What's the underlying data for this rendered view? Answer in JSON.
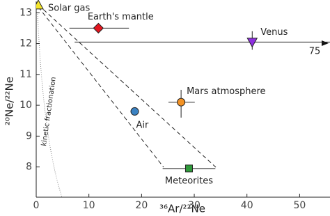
{
  "chart_data": {
    "type": "scatter",
    "x_label": "³⁶Ar/²²Ne",
    "y_label": "²⁰Ne/²²Ne",
    "xlim": [
      0,
      55.5
    ],
    "ylim": [
      7.02,
      13.3
    ],
    "xticks": [
      0,
      10,
      20,
      30,
      40,
      50
    ],
    "yticks": [
      8,
      9,
      10,
      11,
      12,
      13
    ],
    "annotations": [
      "kinetic fractionation",
      "75"
    ],
    "series": [
      {
        "name": "Solar gas",
        "color": "#f4e52c",
        "marker": "triangle",
        "x": [
          0.4
        ],
        "values": [
          13.25
        ]
      },
      {
        "name": "Earth's mantle",
        "color": "#e3161f",
        "marker": "diamond",
        "x": [
          11.8
        ],
        "values": [
          12.5
        ],
        "x_range": [
          6.3,
          17.6
        ]
      },
      {
        "name": "Venus",
        "color": "#8e2fe0",
        "marker": "triangle-down",
        "x": [
          41
        ],
        "values": [
          12.05
        ],
        "x_range": [
          7.3,
          75
        ],
        "y_range": [
          11.8,
          12.4
        ]
      },
      {
        "name": "Mars atmosphere",
        "color": "#f39224",
        "marker": "circle",
        "x": [
          27.5
        ],
        "values": [
          10.1
        ],
        "x_range": [
          25.1,
          30.1
        ],
        "y_range": [
          9.6,
          10.5
        ]
      },
      {
        "name": "Air",
        "color": "#3b82c2",
        "marker": "circle",
        "x": [
          18.7
        ],
        "values": [
          9.8
        ]
      },
      {
        "name": "Meteorites",
        "color": "#2f9a3a",
        "marker": "square",
        "x": [
          29
        ],
        "values": [
          7.95
        ],
        "x_range": [
          24,
          34
        ]
      }
    ]
  }
}
